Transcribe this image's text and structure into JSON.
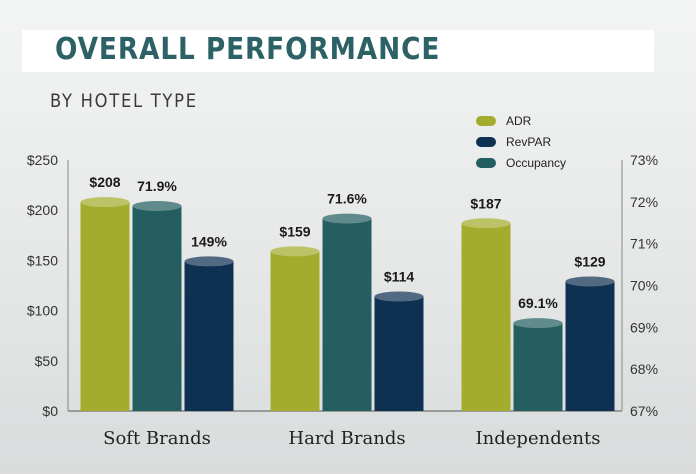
{
  "header": {
    "title": "OVERALL PERFORMANCE",
    "subtitle": "BY HOTEL TYPE"
  },
  "colors": {
    "adr": "#a3ac2c",
    "occupancy": "#255e60",
    "revpar": "#0e3152"
  },
  "chart_data": {
    "type": "bar",
    "title": "OVERALL PERFORMANCE",
    "subtitle": "BY HOTEL TYPE",
    "categories": [
      "Soft Brands",
      "Hard Brands",
      "Independents"
    ],
    "bar_order": [
      "ADR",
      "Occupancy",
      "RevPAR"
    ],
    "series": [
      {
        "name": "ADR",
        "axis": "left",
        "color": "#a3ac2c",
        "values": [
          208,
          159,
          187
        ],
        "labels": [
          "$208",
          "$159",
          "$187"
        ]
      },
      {
        "name": "Occupancy",
        "axis": "right",
        "color": "#255e60",
        "values": [
          71.9,
          71.6,
          69.1
        ],
        "labels": [
          "71.9%",
          "71.6%",
          "69.1%"
        ]
      },
      {
        "name": "RevPAR",
        "axis": "left",
        "color": "#0e3152",
        "values": [
          149,
          114,
          129
        ],
        "labels": [
          "149%",
          "$114",
          "$129"
        ]
      }
    ],
    "legend": [
      "ADR",
      "RevPAR",
      "Occupancy"
    ],
    "legend_position": "top-right",
    "left_axis": {
      "ylim": [
        0,
        250
      ],
      "ticks": [
        "$0",
        "$50",
        "$100",
        "$150",
        "$200",
        "$250"
      ]
    },
    "right_axis": {
      "ylim": [
        67,
        73
      ],
      "ticks": [
        "67%",
        "68%",
        "69%",
        "70%",
        "71%",
        "72%",
        "73%"
      ]
    },
    "grid": false
  }
}
